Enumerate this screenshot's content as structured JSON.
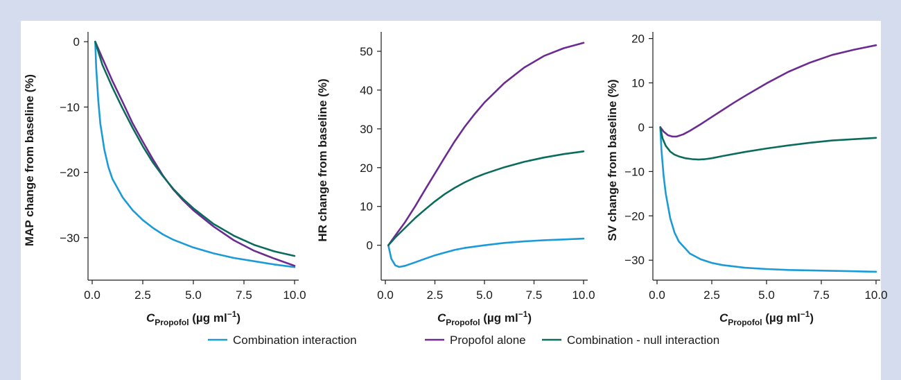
{
  "colors": {
    "combination_interaction": "#1a9ad6",
    "propofol_alone": "#6a2c91",
    "combination_null": "#0b6b5d"
  },
  "legend": [
    {
      "label": "Combination interaction",
      "color": "#1a9ad6"
    },
    {
      "label": "Propofol alone",
      "color": "#6a2c91"
    },
    {
      "label": "Combination - null interaction",
      "color": "#0b6b5d"
    }
  ],
  "chart_data": [
    {
      "type": "line",
      "xlabel_main": "C",
      "xlabel_sub": "Propofol",
      "xlabel_units": " (µg ml",
      "xlabel_sup": "−1",
      "xlabel_close": ")",
      "ylabel": "MAP change from baseline (%)",
      "xlim": [
        0,
        10
      ],
      "ylim": [
        -36.5,
        1.5
      ],
      "xticks": [
        0,
        2.5,
        5,
        7.5,
        10
      ],
      "xtick_labels": [
        "0.0",
        "2.5",
        "5.0",
        "7.5",
        "10.0"
      ],
      "yticks": [
        0,
        -10,
        -20,
        -30
      ],
      "ytick_labels": [
        "0",
        "−10",
        "−20",
        "−30"
      ],
      "series": [
        {
          "name": "Combination interaction",
          "x": [
            0.15,
            0.2,
            0.3,
            0.4,
            0.6,
            0.8,
            1,
            1.5,
            2,
            2.5,
            3,
            3.5,
            4,
            5,
            6,
            7,
            8,
            9,
            10
          ],
          "y": [
            0,
            -4,
            -9,
            -12.5,
            -16.5,
            -19.2,
            -21,
            -23.8,
            -25.8,
            -27.3,
            -28.5,
            -29.5,
            -30.3,
            -31.5,
            -32.4,
            -33.1,
            -33.6,
            -34.1,
            -34.5
          ]
        },
        {
          "name": "Propofol alone",
          "x": [
            0.15,
            0.5,
            1,
            1.5,
            2,
            2.5,
            3,
            3.5,
            4,
            4.5,
            5,
            6,
            7,
            8,
            9,
            10
          ],
          "y": [
            0,
            -2.5,
            -6,
            -9.2,
            -12.5,
            -15.3,
            -18,
            -20.5,
            -22.6,
            -24.3,
            -25.8,
            -28.3,
            -30.4,
            -32,
            -33.2,
            -34.3
          ]
        },
        {
          "name": "Combination - null interaction",
          "x": [
            0.15,
            0.5,
            1,
            1.5,
            2,
            2.5,
            3,
            3.5,
            4,
            4.5,
            5,
            6,
            7,
            8,
            9,
            10
          ],
          "y": [
            0,
            -3.5,
            -7,
            -10.2,
            -13.2,
            -16,
            -18.5,
            -20.6,
            -22.5,
            -24.1,
            -25.5,
            -27.9,
            -29.7,
            -31.1,
            -32.1,
            -32.8
          ]
        }
      ]
    },
    {
      "type": "line",
      "xlabel_main": "C",
      "xlabel_sub": "Propofol",
      "xlabel_units": " (µg ml",
      "xlabel_sup": "−1",
      "xlabel_close": ")",
      "ylabel": "HR change from baseline (%)",
      "xlim": [
        0,
        10
      ],
      "ylim": [
        -9,
        55
      ],
      "xticks": [
        0,
        2.5,
        5,
        7.5,
        10
      ],
      "xtick_labels": [
        "0.0",
        "2.5",
        "5.0",
        "7.5",
        "10.0"
      ],
      "yticks": [
        0,
        10,
        20,
        30,
        40,
        50
      ],
      "ytick_labels": [
        "0",
        "10",
        "20",
        "30",
        "40",
        "50"
      ],
      "series": [
        {
          "name": "Combination interaction",
          "x": [
            0.15,
            0.3,
            0.5,
            0.7,
            1,
            1.5,
            2,
            2.5,
            3,
            3.5,
            4,
            5,
            6,
            7,
            8,
            9,
            10
          ],
          "y": [
            0,
            -3.5,
            -5.2,
            -5.6,
            -5.3,
            -4.4,
            -3.5,
            -2.6,
            -1.9,
            -1.2,
            -0.7,
            0,
            0.6,
            1,
            1.3,
            1.5,
            1.7
          ]
        },
        {
          "name": "Propofol alone",
          "x": [
            0.15,
            0.5,
            1,
            1.5,
            2,
            2.5,
            3,
            3.5,
            4,
            4.5,
            5,
            6,
            7,
            8,
            9,
            10
          ],
          "y": [
            0,
            2.5,
            6,
            10,
            14.3,
            18.5,
            22.7,
            26.8,
            30.5,
            33.8,
            36.8,
            41.8,
            45.8,
            48.8,
            50.8,
            52.2
          ]
        },
        {
          "name": "Combination - null interaction",
          "x": [
            0.15,
            0.5,
            1,
            1.5,
            2,
            2.5,
            3,
            3.5,
            4,
            4.5,
            5,
            6,
            7,
            8,
            9,
            10
          ],
          "y": [
            0,
            2,
            4.5,
            7,
            9.2,
            11.3,
            13.2,
            14.8,
            16.2,
            17.4,
            18.4,
            20.1,
            21.5,
            22.6,
            23.5,
            24.2
          ]
        }
      ]
    },
    {
      "type": "line",
      "xlabel_main": "C",
      "xlabel_sub": "Propofol",
      "xlabel_units": " (µg ml",
      "xlabel_sup": "−1",
      "xlabel_close": ")",
      "ylabel": "SV change from baseline (%)",
      "xlim": [
        0,
        10
      ],
      "ylim": [
        -34.5,
        21.5
      ],
      "xticks": [
        0,
        2.5,
        5,
        7.5,
        10
      ],
      "xtick_labels": [
        "0.0",
        "2.5",
        "5.0",
        "7.5",
        "10.0"
      ],
      "yticks": [
        20,
        10,
        0,
        -10,
        -20,
        -30
      ],
      "ytick_labels": [
        "20",
        "10",
        "0",
        "−10",
        "−20",
        "−30"
      ],
      "series": [
        {
          "name": "Combination interaction",
          "x": [
            0.15,
            0.2,
            0.3,
            0.4,
            0.6,
            0.8,
            1,
            1.5,
            2,
            2.5,
            3,
            4,
            5,
            6,
            7,
            8,
            9,
            10
          ],
          "y": [
            0,
            -5,
            -11,
            -15,
            -20.5,
            -23.8,
            -25.8,
            -28.5,
            -29.8,
            -30.6,
            -31.1,
            -31.7,
            -32,
            -32.2,
            -32.3,
            -32.4,
            -32.5,
            -32.6
          ]
        },
        {
          "name": "Propofol alone",
          "x": [
            0.15,
            0.3,
            0.5,
            0.7,
            0.9,
            1.2,
            1.5,
            2,
            2.5,
            3,
            3.5,
            4,
            5,
            6,
            7,
            8,
            9,
            10
          ],
          "y": [
            0,
            -1,
            -1.8,
            -2.1,
            -2.1,
            -1.6,
            -0.8,
            0.7,
            2.3,
            3.9,
            5.5,
            7,
            9.9,
            12.5,
            14.6,
            16.3,
            17.5,
            18.5
          ]
        },
        {
          "name": "Combination - null interaction",
          "x": [
            0.15,
            0.25,
            0.4,
            0.6,
            0.8,
            1,
            1.3,
            1.6,
            1.9,
            2.2,
            2.5,
            3,
            4,
            5,
            6,
            7,
            8,
            9,
            10
          ],
          "y": [
            0,
            -2.5,
            -4.2,
            -5.5,
            -6.2,
            -6.6,
            -7,
            -7.2,
            -7.3,
            -7.2,
            -7,
            -6.5,
            -5.6,
            -4.8,
            -4.1,
            -3.5,
            -3,
            -2.7,
            -2.4
          ]
        }
      ]
    }
  ]
}
